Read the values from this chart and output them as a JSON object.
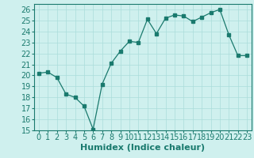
{
  "x": [
    0,
    1,
    2,
    3,
    4,
    5,
    6,
    7,
    8,
    9,
    10,
    11,
    12,
    13,
    14,
    15,
    16,
    17,
    18,
    19,
    20,
    21,
    22,
    23
  ],
  "y": [
    20.2,
    20.3,
    19.8,
    18.3,
    18.0,
    17.2,
    15.1,
    19.2,
    21.1,
    22.2,
    23.1,
    23.0,
    25.1,
    23.8,
    25.2,
    25.5,
    25.4,
    24.9,
    25.3,
    25.7,
    26.0,
    23.7,
    21.8,
    21.8
  ],
  "xlabel": "Humidex (Indice chaleur)",
  "ylim": [
    15,
    26.5
  ],
  "xlim": [
    -0.5,
    23.5
  ],
  "yticks": [
    15,
    16,
    17,
    18,
    19,
    20,
    21,
    22,
    23,
    24,
    25,
    26
  ],
  "xticks": [
    0,
    1,
    2,
    3,
    4,
    5,
    6,
    7,
    8,
    9,
    10,
    11,
    12,
    13,
    14,
    15,
    16,
    17,
    18,
    19,
    20,
    21,
    22,
    23
  ],
  "line_color": "#1a7a6e",
  "marker_color": "#1a7a6e",
  "bg_color": "#cff0ee",
  "grid_color": "#aaddda",
  "tick_color": "#1a7a6e",
  "label_color": "#1a7a6e",
  "xlabel_fontsize": 8,
  "tick_fontsize": 7
}
